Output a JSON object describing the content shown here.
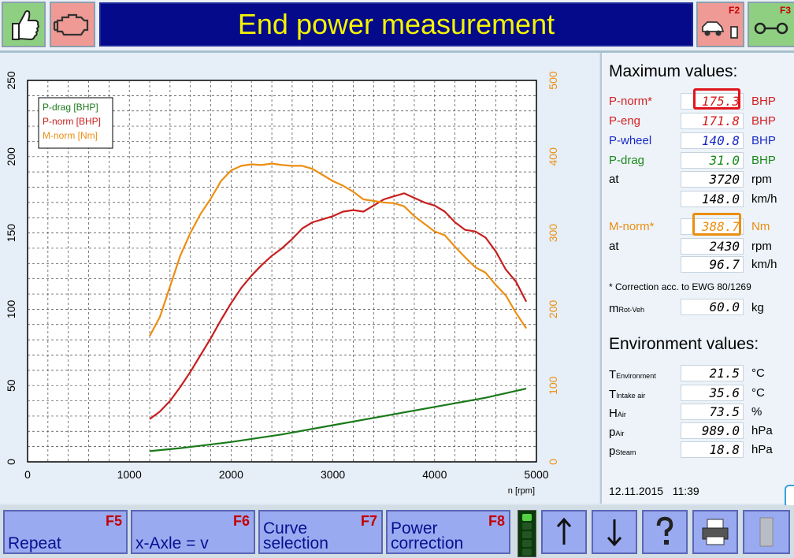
{
  "header": {
    "title": "End power measurement",
    "f2_label": "F2",
    "f3_label": "F3"
  },
  "chart_data": {
    "type": "line",
    "xlabel": "n [rpm]",
    "xlim": [
      0,
      5000
    ],
    "x_ticks": [
      "0",
      "1000",
      "2000",
      "3000",
      "4000",
      "5000"
    ],
    "y_left_ticks": [
      "0",
      "50",
      "100",
      "150",
      "200",
      "250"
    ],
    "ylim_left": [
      0,
      250
    ],
    "y_right_ticks": [
      "0",
      "100",
      "200",
      "300",
      "400",
      "500"
    ],
    "ylim_right": [
      0,
      500
    ],
    "grid": true,
    "legend_position": "top-left",
    "series": [
      {
        "name": "P-drag [BHP]",
        "color": "#1a7a1a",
        "axis": "left",
        "x": [
          1200,
          1500,
          2000,
          2500,
          3000,
          3500,
          4000,
          4500,
          4900
        ],
        "y": [
          7,
          9,
          13,
          18,
          24,
          30,
          36,
          42,
          48
        ]
      },
      {
        "name": "P-norm [BHP]",
        "color": "#c81e1e",
        "axis": "left",
        "x": [
          1200,
          1300,
          1400,
          1500,
          1600,
          1700,
          1800,
          1900,
          2000,
          2100,
          2200,
          2300,
          2400,
          2500,
          2600,
          2700,
          2800,
          2900,
          3000,
          3100,
          3200,
          3300,
          3400,
          3500,
          3600,
          3700,
          3800,
          3900,
          4000,
          4100,
          4200,
          4300,
          4400,
          4500,
          4600,
          4700,
          4800,
          4900
        ],
        "y": [
          28,
          33,
          40,
          49,
          59,
          70,
          81,
          93,
          104,
          114,
          122,
          129,
          135,
          140,
          146,
          153,
          157,
          159,
          161,
          164,
          165,
          164,
          168,
          172,
          174,
          176,
          173,
          170,
          168,
          164,
          157,
          152,
          151,
          147,
          138,
          126,
          118,
          105
        ]
      },
      {
        "name": "M-norm [Nm]",
        "color": "#ec8e12",
        "axis": "right",
        "x": [
          1200,
          1300,
          1400,
          1500,
          1600,
          1700,
          1800,
          1900,
          2000,
          2100,
          2200,
          2300,
          2400,
          2500,
          2600,
          2700,
          2800,
          2900,
          3000,
          3100,
          3200,
          3300,
          3400,
          3500,
          3600,
          3700,
          3800,
          3900,
          4000,
          4100,
          4200,
          4300,
          4400,
          4500,
          4600,
          4700,
          4800,
          4900
        ],
        "y": [
          165,
          190,
          230,
          270,
          300,
          325,
          345,
          368,
          382,
          388,
          390,
          389,
          391,
          389,
          388,
          388,
          384,
          376,
          368,
          362,
          354,
          344,
          342,
          340,
          339,
          335,
          322,
          312,
          302,
          297,
          282,
          268,
          255,
          248,
          232,
          218,
          195,
          175
        ]
      }
    ]
  },
  "maxvalues": {
    "title": "Maximum values:",
    "pnorm_label": "P-norm*",
    "pnorm_value": "175.3",
    "pnorm_unit": "BHP",
    "peng_label": "P-eng",
    "peng_value": "171.8",
    "peng_unit": "BHP",
    "pwheel_label": "P-wheel",
    "pwheel_value": "140.8",
    "pwheel_unit": "BHP",
    "pdrag_label": "P-drag",
    "pdrag_value": "31.0",
    "pdrag_unit": "BHP",
    "at_label": "at",
    "rpm_value": "3720",
    "rpm_unit": "rpm",
    "kmh_value": "148.0",
    "kmh_unit": "km/h",
    "mnorm_label": "M-norm*",
    "mnorm_value": "388.7",
    "mnorm_unit": "Nm",
    "at2_label": "at",
    "rpm2_value": "2430",
    "rpm2_unit": "rpm",
    "kmh2_value": "96.7",
    "kmh2_unit": "km/h",
    "correction_note": "* Correction acc. to EWG 80/1269",
    "mrot_main": "m",
    "mrot_sub": "Rot-Veh",
    "mrot_value": "60.0",
    "mrot_unit": "kg"
  },
  "environment": {
    "title": "Environment values:",
    "items": [
      {
        "main": "T",
        "sub": "Environment",
        "value": "21.5",
        "unit": "°C"
      },
      {
        "main": "T",
        "sub": "Intake air",
        "value": "35.6",
        "unit": "°C"
      },
      {
        "main": "H",
        "sub": "Air",
        "value": "73.5",
        "unit": "%"
      },
      {
        "main": "p",
        "sub": "Air",
        "value": "989.0",
        "unit": "hPa"
      },
      {
        "main": "p",
        "sub": "Steam",
        "value": "18.8",
        "unit": "hPa"
      }
    ]
  },
  "status": {
    "date": "12.11.2015",
    "time": "11:39"
  },
  "footer": {
    "repeat": "Repeat",
    "repeat_key": "F5",
    "xaxle": "x-Axle = v",
    "xaxle_key": "F6",
    "curve_1": "Curve",
    "curve_2": "selection",
    "curve_key": "F7",
    "power_1": "Power",
    "power_2": "correction",
    "power_key": "F8"
  },
  "colors": {
    "title_bg": "#040a8a",
    "title_text": "#f3f400",
    "button": "#9aaaf0",
    "key_label": "#c40000"
  }
}
